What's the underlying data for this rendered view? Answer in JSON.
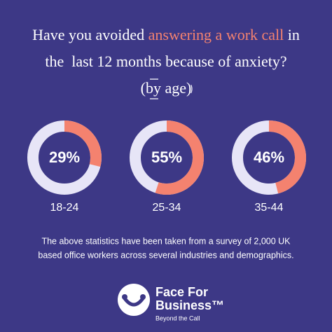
{
  "title": {
    "line1": [
      "Have you avoided ",
      "answering a work call",
      " in"
    ],
    "line2": "the  last 12 months because of anxiety?"
  },
  "subtitle": "(by age)",
  "chart_data": [
    {
      "type": "donut",
      "category": "18-24",
      "values": [
        29
      ],
      "value_labels": [
        "29%"
      ],
      "ylim": [
        0,
        100
      ],
      "color": "#f4826f",
      "track_color": "#e7e5f7"
    },
    {
      "type": "donut",
      "category": "25-34",
      "values": [
        55
      ],
      "value_labels": [
        "55%"
      ],
      "ylim": [
        0,
        100
      ],
      "color": "#f4826f",
      "track_color": "#e7e5f7"
    },
    {
      "type": "donut",
      "category": "35-44",
      "values": [
        46
      ],
      "value_labels": [
        "46%"
      ],
      "ylim": [
        0,
        100
      ],
      "color": "#f4826f",
      "track_color": "#e7e5f7"
    }
  ],
  "footnote": [
    "The above statistics have been taken from a survey of 2,000 UK",
    "based office workers across several industries and demographics."
  ],
  "logo": {
    "name_line1": "Face For",
    "name_line2": "Business™",
    "tagline": "Beyond the Call"
  }
}
